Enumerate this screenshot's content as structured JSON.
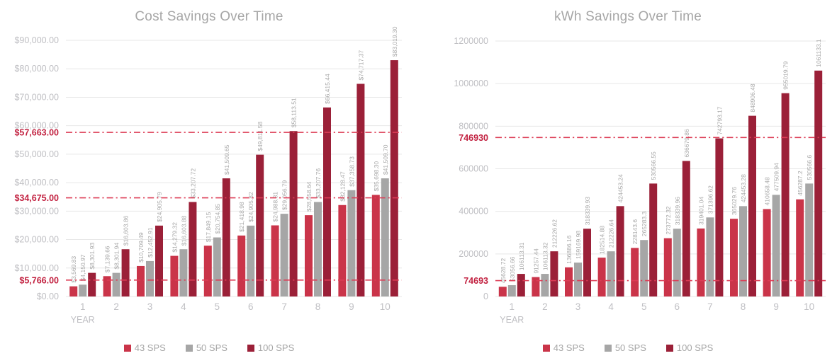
{
  "page": {
    "background": "#ffffff"
  },
  "colors": {
    "grid": "#e7e7e7",
    "axis_text": "#bfbfc3",
    "bar_label": "#a8a8a8",
    "title": "#a6a6a6",
    "reference_line": "#dd3d56",
    "reference_label": "#c22140",
    "legend_text": "#a6a6a6"
  },
  "chart_data": [
    {
      "type": "bar",
      "title": "Cost Savings Over Time",
      "xlabel": "YEAR",
      "ylabel": "",
      "ylim": [
        0,
        90000
      ],
      "grid": true,
      "legend_position": "bottom",
      "categories": [
        "1",
        "2",
        "3",
        "4",
        "5",
        "6",
        "7",
        "8",
        "9",
        "10"
      ],
      "y_ticks": [
        {
          "value": 0,
          "label": "$0.00"
        },
        {
          "value": 10000,
          "label": "$10,000.00"
        },
        {
          "value": 20000,
          "label": "$20,000.00"
        },
        {
          "value": 30000,
          "label": "$30,000.00"
        },
        {
          "value": 40000,
          "label": "$40,000.00"
        },
        {
          "value": 50000,
          "label": "$50,000.00"
        },
        {
          "value": 60000,
          "label": "$60,000.00"
        },
        {
          "value": 70000,
          "label": "$70,000.00"
        },
        {
          "value": 80000,
          "label": "$80,000.00"
        },
        {
          "value": 90000,
          "label": "$90,000.00"
        }
      ],
      "reference_lines": [
        {
          "value": 57663,
          "label": "$57,663.00"
        },
        {
          "value": 34675,
          "label": "$34,675.00"
        },
        {
          "value": 5766,
          "label": "$5,766.00"
        }
      ],
      "series": [
        {
          "name": "43 SPS",
          "color": "#ca3449",
          "values": [
            3569.83,
            7139.66,
            10709.49,
            14279.32,
            17849.15,
            21418.98,
            24988.81,
            28558.64,
            32128.47,
            35698.3
          ],
          "labels": [
            "$3,569.83",
            "$7,139.66",
            "$10,709.49",
            "$14,279.32",
            "$17,849.15",
            "$21,418.98",
            "$24,988.81",
            "$28,558.64",
            "$32,128.47",
            "$35,698.30"
          ]
        },
        {
          "name": "50 SPS",
          "color": "#a6a6a6",
          "values": [
            4150.97,
            8301.94,
            12452.91,
            16603.88,
            20754.85,
            24905.82,
            29056.79,
            33207.76,
            37358.73,
            41509.7
          ],
          "labels": [
            "$4,150.97",
            "$8,301.94",
            "$12,452.91",
            "$16,603.88",
            "$20,754.85",
            "$24,905.82",
            "$29,056.79",
            "$33,207.76",
            "$37,358.73",
            "$41,509.70"
          ]
        },
        {
          "name": "100 SPS",
          "color": "#9b2038",
          "values": [
            8301.93,
            16603.86,
            24905.79,
            33207.72,
            41509.65,
            49811.58,
            58113.51,
            66415.44,
            74717.37,
            83019.3
          ],
          "labels": [
            "$8,301.93",
            "$16,603.86",
            "$24,905.79",
            "$33,207.72",
            "$41,509.65",
            "$49,811.58",
            "$58,113.51",
            "$66,415.44",
            "$74,717.37",
            "$83,019.30"
          ]
        }
      ]
    },
    {
      "type": "bar",
      "title": "kWh Savings Over Time",
      "xlabel": "YEAR",
      "ylabel": "",
      "ylim": [
        0,
        1200000
      ],
      "grid": true,
      "legend_position": "bottom",
      "categories": [
        "1",
        "2",
        "3",
        "4",
        "5",
        "6",
        "7",
        "8",
        "9",
        "10"
      ],
      "y_ticks": [
        {
          "value": 0,
          "label": "0"
        },
        {
          "value": 200000,
          "label": "200000"
        },
        {
          "value": 400000,
          "label": "400000"
        },
        {
          "value": 600000,
          "label": "600000"
        },
        {
          "value": 800000,
          "label": "800000"
        },
        {
          "value": 1000000,
          "label": "1000000"
        },
        {
          "value": 1200000,
          "label": "1200000"
        }
      ],
      "reference_lines": [
        {
          "value": 746930,
          "label": "746930"
        },
        {
          "value": 74693,
          "label": "74693"
        }
      ],
      "series": [
        {
          "name": "43 SPS",
          "color": "#ca3449",
          "values": [
            45628.72,
            91257.44,
            136886.16,
            182514.88,
            228143.6,
            273772.32,
            319401.04,
            365029.76,
            410658.48,
            456287.2
          ],
          "labels": [
            "45628.72",
            "91257.44",
            "136886.16",
            "182514.88",
            "228143.6",
            "273772.32",
            "319401.04",
            "365029.76",
            "410658.48",
            "456287.2"
          ]
        },
        {
          "name": "50 SPS",
          "color": "#a6a6a6",
          "values": [
            53056.66,
            106113.32,
            159169.98,
            212226.64,
            265283.3,
            318339.96,
            371396.62,
            424453.28,
            477509.94,
            530566.6
          ],
          "labels": [
            "53056.66",
            "106113.32",
            "159169.98",
            "212226.64",
            "265283.3",
            "318339.96",
            "371396.62",
            "424453.28",
            "477509.94",
            "530566.6"
          ]
        },
        {
          "name": "100 SPS",
          "color": "#9b2038",
          "values": [
            106113.31,
            212226.62,
            318339.93,
            424453.24,
            530566.55,
            636679.86,
            742793.17,
            848906.48,
            955019.79,
            1061133.1
          ],
          "labels": [
            "106113.31",
            "212226.62",
            "318339.93",
            "424453.24",
            "530566.55",
            "636679.86",
            "742793.17",
            "848906.48",
            "955019.79",
            "1061133.1"
          ]
        }
      ]
    }
  ]
}
